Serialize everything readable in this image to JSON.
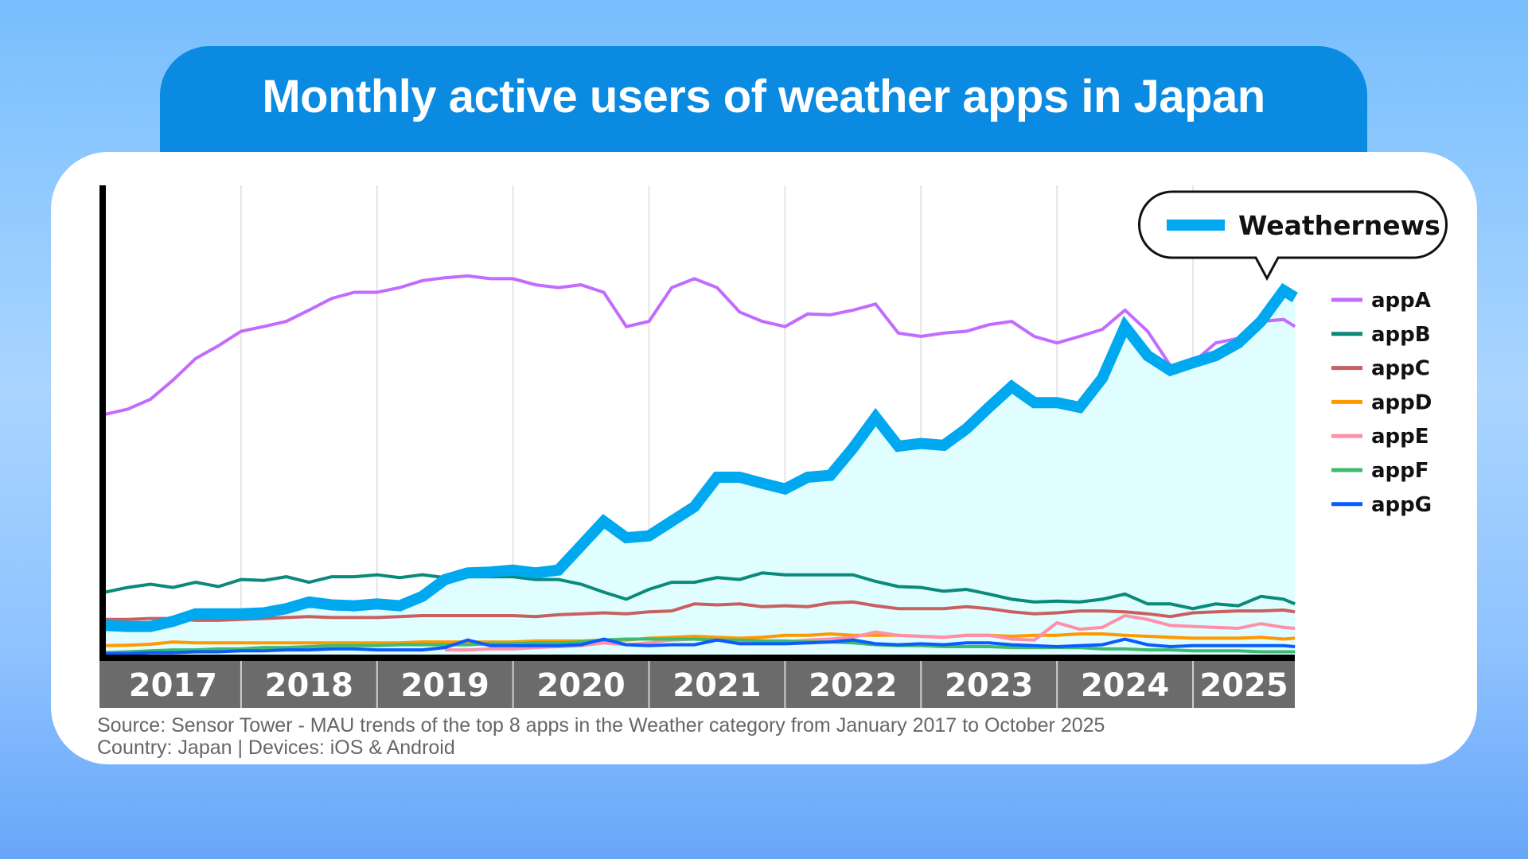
{
  "title": "Monthly active users of weather apps in Japan",
  "footer": {
    "source": "Source: Sensor Tower - MAU trends of the top 8 apps in the Weather category from January 2017 to October 2025",
    "scope": "Country: Japan | Devices: iOS & Android"
  },
  "colors": {
    "background_top": "#78befd",
    "title_bg": "#0a8ae0",
    "panel": "#ffffff",
    "year_band": "#6b6b6b",
    "area_fill": "#e0fdff"
  },
  "chart_data": {
    "type": "line",
    "title": "Monthly active users of weather apps in Japan",
    "xlabel": "",
    "ylabel": "",
    "y_tick_labels": "none",
    "ylim": [
      0,
      100
    ],
    "grid": "vertical yearly lines",
    "legend_position": "right",
    "highlight": {
      "series": "Weathernews",
      "style": "thick line with filled area, callout label"
    },
    "year_labels": [
      "2017",
      "2018",
      "2019",
      "2020",
      "2021",
      "2022",
      "2023",
      "2024",
      "2025"
    ],
    "x": [
      "2017-01",
      "2017-03",
      "2017-05",
      "2017-07",
      "2017-09",
      "2017-11",
      "2018-01",
      "2018-03",
      "2018-05",
      "2018-07",
      "2018-09",
      "2018-11",
      "2019-01",
      "2019-03",
      "2019-05",
      "2019-07",
      "2019-09",
      "2019-11",
      "2020-01",
      "2020-03",
      "2020-05",
      "2020-07",
      "2020-09",
      "2020-11",
      "2021-01",
      "2021-03",
      "2021-05",
      "2021-07",
      "2021-09",
      "2021-11",
      "2022-01",
      "2022-03",
      "2022-05",
      "2022-07",
      "2022-09",
      "2022-11",
      "2023-01",
      "2023-03",
      "2023-05",
      "2023-07",
      "2023-09",
      "2023-11",
      "2024-01",
      "2024-03",
      "2024-05",
      "2024-07",
      "2024-09",
      "2024-11",
      "2025-01",
      "2025-03",
      "2025-05",
      "2025-07",
      "2025-09",
      "2025-10"
    ],
    "series": [
      {
        "name": "appA",
        "color": "#c26bff",
        "values": [
          51.2,
          52.3,
          54.4,
          58.5,
          63.1,
          65.8,
          68.9,
          69.9,
          71.0,
          73.4,
          75.9,
          77.2,
          77.2,
          78.2,
          79.7,
          80.3,
          80.7,
          80.1,
          80.1,
          78.8,
          78.2,
          78.8,
          77.2,
          69.9,
          71.0,
          78.2,
          80.1,
          78.2,
          73.0,
          71.0,
          69.9,
          72.6,
          72.4,
          73.4,
          74.7,
          68.5,
          67.8,
          68.5,
          68.9,
          70.3,
          71.0,
          67.8,
          66.4,
          67.8,
          69.3,
          73.4,
          68.9,
          61.6,
          62.2,
          66.4,
          67.4,
          71.0,
          71.4,
          69.9
        ]
      },
      {
        "name": "appB",
        "color": "#0a8a7a",
        "values": [
          13.3,
          14.3,
          15.0,
          14.3,
          15.4,
          14.5,
          16.0,
          15.8,
          16.6,
          15.4,
          16.6,
          16.6,
          17.0,
          16.4,
          17.0,
          16.4,
          16.6,
          16.6,
          16.6,
          16.0,
          16.0,
          15.0,
          13.3,
          11.8,
          13.9,
          15.4,
          15.4,
          16.4,
          16.0,
          17.4,
          17.0,
          17.0,
          17.0,
          17.0,
          15.6,
          14.5,
          14.3,
          13.5,
          13.9,
          12.9,
          11.8,
          11.2,
          11.4,
          11.2,
          11.8,
          12.9,
          10.8,
          10.8,
          9.8,
          10.8,
          10.4,
          12.4,
          11.8,
          10.8
        ]
      },
      {
        "name": "appC",
        "color": "#c86060",
        "values": [
          7.5,
          7.5,
          7.7,
          7.7,
          7.3,
          7.3,
          7.5,
          7.7,
          7.9,
          8.1,
          7.9,
          7.9,
          7.9,
          8.1,
          8.3,
          8.3,
          8.3,
          8.3,
          8.3,
          8.1,
          8.5,
          8.7,
          8.9,
          8.7,
          9.1,
          9.3,
          10.8,
          10.6,
          10.8,
          10.2,
          10.4,
          10.2,
          11.0,
          11.2,
          10.4,
          9.8,
          9.8,
          9.8,
          10.2,
          9.8,
          9.1,
          8.7,
          8.9,
          9.3,
          9.3,
          9.1,
          8.7,
          8.1,
          8.9,
          9.1,
          9.3,
          9.3,
          9.5,
          9.1
        ]
      },
      {
        "name": "appD",
        "color": "#ff9900",
        "values": [
          1.9,
          2.0,
          2.2,
          2.7,
          2.5,
          2.5,
          2.5,
          2.5,
          2.5,
          2.5,
          2.5,
          2.5,
          2.5,
          2.5,
          2.7,
          2.7,
          2.7,
          2.7,
          2.7,
          2.9,
          2.9,
          2.9,
          3.1,
          3.1,
          3.5,
          3.7,
          3.9,
          3.7,
          3.5,
          3.7,
          4.1,
          4.1,
          4.4,
          4.1,
          4.1,
          4.1,
          3.9,
          3.7,
          4.1,
          4.1,
          3.9,
          4.1,
          4.1,
          4.4,
          4.4,
          4.1,
          3.9,
          3.7,
          3.5,
          3.5,
          3.5,
          3.7,
          3.3,
          3.5
        ]
      },
      {
        "name": "appE",
        "color": "#ff8fa8",
        "values": [
          null,
          null,
          null,
          null,
          null,
          null,
          null,
          null,
          null,
          null,
          null,
          null,
          null,
          null,
          null,
          1.0,
          1.0,
          1.2,
          1.2,
          1.5,
          1.7,
          1.9,
          2.5,
          2.1,
          2.5,
          3.1,
          3.3,
          3.1,
          2.9,
          2.7,
          2.7,
          3.1,
          3.3,
          3.7,
          4.8,
          4.1,
          3.9,
          3.7,
          4.1,
          4.1,
          3.3,
          3.1,
          6.8,
          5.4,
          5.8,
          8.3,
          7.5,
          6.2,
          6.0,
          5.8,
          5.6,
          6.6,
          5.8,
          5.6
        ]
      },
      {
        "name": "appF",
        "color": "#3dbb70",
        "values": [
          0.4,
          0.6,
          0.8,
          1.0,
          1.0,
          1.2,
          1.2,
          1.5,
          1.5,
          1.7,
          1.9,
          1.9,
          1.9,
          2.1,
          2.1,
          2.1,
          2.1,
          2.3,
          2.3,
          2.5,
          2.5,
          2.7,
          3.1,
          3.3,
          3.3,
          3.3,
          3.3,
          3.1,
          3.1,
          2.9,
          2.9,
          2.7,
          2.7,
          2.5,
          2.1,
          1.9,
          1.9,
          1.7,
          1.7,
          1.7,
          1.5,
          1.5,
          1.5,
          1.5,
          1.2,
          1.2,
          1.0,
          1.0,
          0.8,
          0.8,
          0.8,
          0.6,
          0.6,
          0.6
        ]
      },
      {
        "name": "appG",
        "color": "#0a5cff",
        "values": [
          0.2,
          0.2,
          0.4,
          0.4,
          0.6,
          0.6,
          0.8,
          0.8,
          1.0,
          1.0,
          1.2,
          1.2,
          1.0,
          1.0,
          1.0,
          1.5,
          3.1,
          1.9,
          1.9,
          1.9,
          1.9,
          2.1,
          3.3,
          2.1,
          1.9,
          2.1,
          2.1,
          3.1,
          2.3,
          2.3,
          2.3,
          2.5,
          2.7,
          3.1,
          2.3,
          2.1,
          2.3,
          2.1,
          2.5,
          2.5,
          2.1,
          1.9,
          1.7,
          1.9,
          2.1,
          3.3,
          2.1,
          1.7,
          1.9,
          1.9,
          1.9,
          1.9,
          1.9,
          1.7
        ]
      },
      {
        "name": "Weathernews",
        "color": "#00a8f0",
        "values": [
          6.2,
          6.0,
          6.0,
          7.1,
          8.7,
          8.7,
          8.7,
          8.9,
          9.8,
          11.2,
          10.6,
          10.4,
          10.8,
          10.4,
          12.4,
          16.0,
          17.4,
          17.6,
          18.0,
          17.4,
          18.0,
          23.2,
          28.4,
          24.9,
          25.3,
          28.4,
          31.5,
          37.8,
          37.8,
          36.5,
          35.3,
          37.8,
          38.2,
          44.0,
          50.6,
          44.4,
          45.0,
          44.6,
          48.1,
          52.7,
          57.1,
          53.7,
          53.7,
          52.7,
          58.9,
          69.9,
          63.7,
          60.6,
          62.2,
          63.7,
          66.4,
          71.0,
          77.6,
          76.1
        ]
      }
    ]
  }
}
